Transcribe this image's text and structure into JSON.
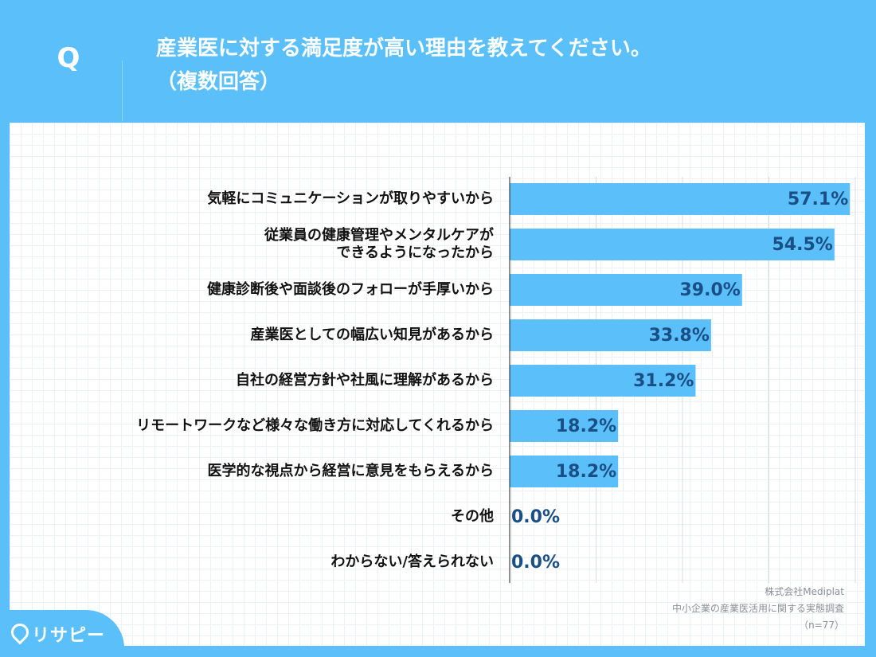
{
  "header": {
    "q_mark": "Q",
    "title_line1": "産業医に対する満足度が高い理由を教えてください。",
    "title_line2": "（複数回答）"
  },
  "chart_data": {
    "type": "bar",
    "orientation": "horizontal",
    "categories": [
      [
        "気軽にコミュニケーションが取りやすいから"
      ],
      [
        "従業員の健康管理やメンタルケアが",
        "できるようになったから"
      ],
      [
        "健康診断後や面談後のフォローが手厚いから"
      ],
      [
        "産業医としての幅広い知見があるから"
      ],
      [
        "自社の経営方針や社風に理解があるから"
      ],
      [
        "リモートワークなど様々な働き方に対応してくれるから"
      ],
      [
        "医学的な視点から経営に意見をもらえるから"
      ],
      [
        "その他"
      ],
      [
        "わからない/答えられない"
      ]
    ],
    "values": [
      57.1,
      54.5,
      39.0,
      33.8,
      31.2,
      18.2,
      18.2,
      0.0,
      0.0
    ],
    "value_labels": [
      "57.1%",
      "54.5%",
      "39.0%",
      "33.8%",
      "31.2%",
      "18.2%",
      "18.2%",
      "0.0%",
      "0.0%"
    ],
    "xlim": [
      0,
      58
    ],
    "grid_values": [
      14.5,
      29,
      43.5,
      58
    ],
    "bar_color": "#5bbff9",
    "label_color": "#1a4f86"
  },
  "source": {
    "line1": "株式会社Mediplat",
    "line2": "中小企業の産業医活用に関する実態調査",
    "line3": "（n=77）"
  },
  "logo": {
    "text": "リサピー"
  }
}
